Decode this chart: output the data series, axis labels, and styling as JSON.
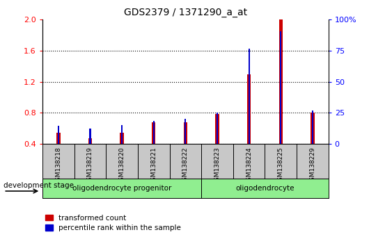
{
  "title": "GDS2379 / 1371290_a_at",
  "samples": [
    "GSM138218",
    "GSM138219",
    "GSM138220",
    "GSM138221",
    "GSM138222",
    "GSM138223",
    "GSM138224",
    "GSM138225",
    "GSM138229"
  ],
  "red_values": [
    0.54,
    0.47,
    0.54,
    0.68,
    0.68,
    0.79,
    1.3,
    2.0,
    0.8
  ],
  "blue_values": [
    0.63,
    0.6,
    0.64,
    0.7,
    0.72,
    0.8,
    1.63,
    1.85,
    0.83
  ],
  "ylim_left": [
    0.4,
    2.0
  ],
  "ylim_right": [
    0,
    100
  ],
  "yticks_left": [
    0.4,
    0.8,
    1.2,
    1.6,
    2.0
  ],
  "yticks_right": [
    0,
    25,
    50,
    75,
    100
  ],
  "ytick_labels_right": [
    "0",
    "25",
    "50",
    "75",
    "100%"
  ],
  "bar_width": 0.12,
  "red_color": "#CC0000",
  "blue_color": "#0000CC",
  "bg_color": "#C8C8C8",
  "green_color": "#90EE90",
  "legend_red": "transformed count",
  "legend_blue": "percentile rank within the sample",
  "dev_stage_label": "development stage",
  "group1_label": "oligodendrocyte progenitor",
  "group1_count": 5,
  "group2_label": "oligodendrocyte",
  "group2_count": 4
}
